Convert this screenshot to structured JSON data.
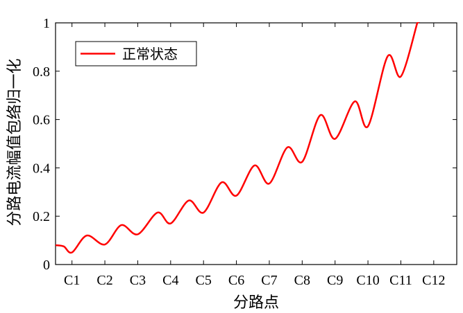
{
  "chart_data": {
    "type": "line",
    "xlabel": "分路点",
    "ylabel": "分路电流幅值包络归一化",
    "ylim": [
      0,
      1
    ],
    "y_ticks": [
      "0",
      "0.2",
      "0.4",
      "0.6",
      "0.8",
      "1"
    ],
    "categories": [
      "C1",
      "C2",
      "C3",
      "C4",
      "C5",
      "C6",
      "C7",
      "C8",
      "C9",
      "C10",
      "C11",
      "C12"
    ],
    "xlim": [
      0.5,
      12.7
    ],
    "legend_position": "top-left",
    "grid": false,
    "series": [
      {
        "name": "正常状态",
        "color": "#ff0000",
        "x": [
          0.5,
          0.75,
          1.0,
          1.45,
          2.0,
          2.5,
          3.0,
          3.6,
          4.0,
          4.55,
          5.0,
          5.55,
          6.0,
          6.55,
          7.0,
          7.55,
          8.0,
          8.55,
          9.0,
          9.6,
          10.0,
          10.6,
          11.0,
          11.5
        ],
        "y": [
          0.08,
          0.075,
          0.05,
          0.12,
          0.083,
          0.163,
          0.125,
          0.215,
          0.17,
          0.265,
          0.215,
          0.34,
          0.285,
          0.41,
          0.335,
          0.485,
          0.425,
          0.618,
          0.52,
          0.675,
          0.572,
          0.862,
          0.778,
          1.0
        ]
      }
    ]
  }
}
